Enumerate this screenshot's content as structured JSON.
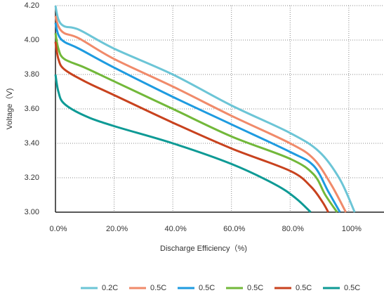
{
  "chart_data": {
    "type": "line",
    "y_label": "Voltage（V)",
    "x_label": "Discharge Efficiency（%)",
    "xlim": [
      0,
      112
    ],
    "ylim": [
      3.0,
      4.2
    ],
    "xticks": [
      {
        "value": 0,
        "label": "0.0%"
      },
      {
        "value": 20,
        "label": "20.0%"
      },
      {
        "value": 40,
        "label": "40.0%"
      },
      {
        "value": 60,
        "label": "60.0%"
      },
      {
        "value": 80,
        "label": "80.0%"
      },
      {
        "value": 100,
        "label": "100%"
      }
    ],
    "yticks": [
      {
        "value": 3.0,
        "label": "3.00"
      },
      {
        "value": 3.2,
        "label": "3.20"
      },
      {
        "value": 3.4,
        "label": "3.40"
      },
      {
        "value": 3.6,
        "label": "3.60"
      },
      {
        "value": 3.8,
        "label": "3.80"
      },
      {
        "value": 4.0,
        "label": "4.00"
      },
      {
        "value": 4.2,
        "label": "4.20"
      }
    ],
    "grid": true,
    "legend": "bottom",
    "series": [
      {
        "name": "0.2C",
        "color": "#6cc5d6",
        "x": [
          0,
          1,
          3,
          8,
          20,
          40,
          60,
          80,
          90,
          97,
          102
        ],
        "values": [
          4.2,
          4.12,
          4.08,
          4.06,
          3.95,
          3.8,
          3.62,
          3.46,
          3.35,
          3.19,
          3.0
        ]
      },
      {
        "name": "0.5C",
        "color": "#f08a6a",
        "x": [
          0,
          1,
          3,
          8,
          20,
          40,
          60,
          80,
          88,
          94,
          99
        ],
        "values": [
          4.14,
          4.08,
          4.04,
          4.01,
          3.89,
          3.73,
          3.56,
          3.4,
          3.31,
          3.16,
          3.0
        ]
      },
      {
        "name": "0.5C",
        "color": "#1e9be0",
        "x": [
          0,
          1,
          3,
          8,
          20,
          40,
          60,
          80,
          88,
          93,
          97
        ],
        "values": [
          4.1,
          4.03,
          3.99,
          3.95,
          3.84,
          3.67,
          3.51,
          3.35,
          3.27,
          3.12,
          3.0
        ]
      },
      {
        "name": "0.5C",
        "color": "#72b83a",
        "x": [
          0,
          1,
          3,
          10,
          20,
          40,
          60,
          80,
          88,
          92,
          96
        ],
        "values": [
          4.04,
          3.95,
          3.89,
          3.84,
          3.76,
          3.6,
          3.44,
          3.31,
          3.22,
          3.1,
          3.0
        ]
      },
      {
        "name": "0.5C",
        "color": "#c8421e",
        "x": [
          0,
          1,
          3,
          10,
          20,
          40,
          60,
          80,
          87,
          91,
          93
        ],
        "values": [
          3.99,
          3.89,
          3.83,
          3.76,
          3.68,
          3.52,
          3.37,
          3.24,
          3.15,
          3.06,
          3.0
        ]
      },
      {
        "name": "0.5C",
        "color": "#0e9a95",
        "x": [
          0,
          1,
          3,
          10,
          20,
          40,
          60,
          75,
          82,
          87
        ],
        "values": [
          3.8,
          3.7,
          3.63,
          3.56,
          3.5,
          3.4,
          3.28,
          3.16,
          3.08,
          3.0
        ]
      }
    ]
  }
}
